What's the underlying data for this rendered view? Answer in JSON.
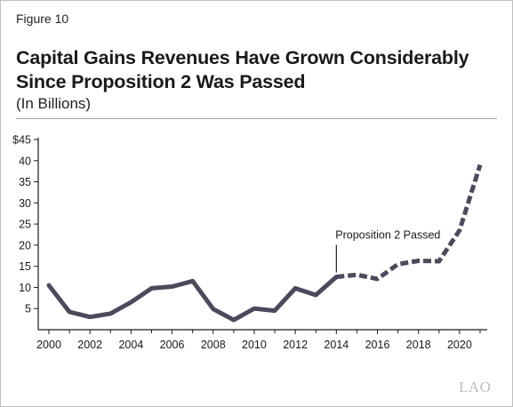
{
  "figure_label": "Figure 10",
  "title_line1": "Capital Gains Revenues Have Grown Considerably",
  "title_line2": "Since Proposition 2 Was Passed",
  "subtitle": "(In Billions)",
  "logo_text": "LAO",
  "colors": {
    "line": "#4b4a5c",
    "axis": "#1a1a1a",
    "rule": "#a6a6a6"
  },
  "chart_data": {
    "type": "line",
    "title": "Capital Gains Revenues Have Grown Considerably Since Proposition 2 Was Passed",
    "subtitle": "(In Billions)",
    "xlabel": "",
    "ylabel": "",
    "xlim": [
      2000,
      2021
    ],
    "ylim": [
      0,
      45
    ],
    "grid": false,
    "x_ticks": [
      "2000",
      "2002",
      "2004",
      "2006",
      "2008",
      "2010",
      "2012",
      "2014",
      "2016",
      "2018",
      "2020"
    ],
    "y_ticks": [
      "5",
      "10",
      "15",
      "20",
      "25",
      "30",
      "35",
      "40",
      "$45"
    ],
    "x": [
      2000,
      2001,
      2002,
      2003,
      2004,
      2005,
      2006,
      2007,
      2008,
      2009,
      2010,
      2011,
      2012,
      2013,
      2014,
      2015,
      2016,
      2017,
      2018,
      2019,
      2020,
      2021
    ],
    "values": [
      10.5,
      4.2,
      3.0,
      3.8,
      6.5,
      9.8,
      10.2,
      11.5,
      4.9,
      2.3,
      5.0,
      4.5,
      9.8,
      8.2,
      12.5,
      13.0,
      12.0,
      15.5,
      16.3,
      16.2,
      23.5,
      39.0
    ],
    "series": [
      {
        "style": "solid",
        "x": [
          2000,
          2001,
          2002,
          2003,
          2004,
          2005,
          2006,
          2007,
          2008,
          2009,
          2010,
          2011,
          2012,
          2013,
          2014
        ],
        "values": [
          10.5,
          4.2,
          3.0,
          3.8,
          6.5,
          9.8,
          10.2,
          11.5,
          4.9,
          2.3,
          5.0,
          4.5,
          9.8,
          8.2,
          12.5
        ]
      },
      {
        "style": "dashed",
        "x": [
          2014,
          2015,
          2016,
          2017,
          2018,
          2019,
          2020,
          2021
        ],
        "values": [
          12.5,
          13.0,
          12.0,
          15.5,
          16.3,
          16.2,
          23.5,
          39.0
        ]
      }
    ],
    "annotations": [
      {
        "text": "Proposition 2 Passed",
        "x": 2014,
        "y": 12.5
      }
    ]
  }
}
